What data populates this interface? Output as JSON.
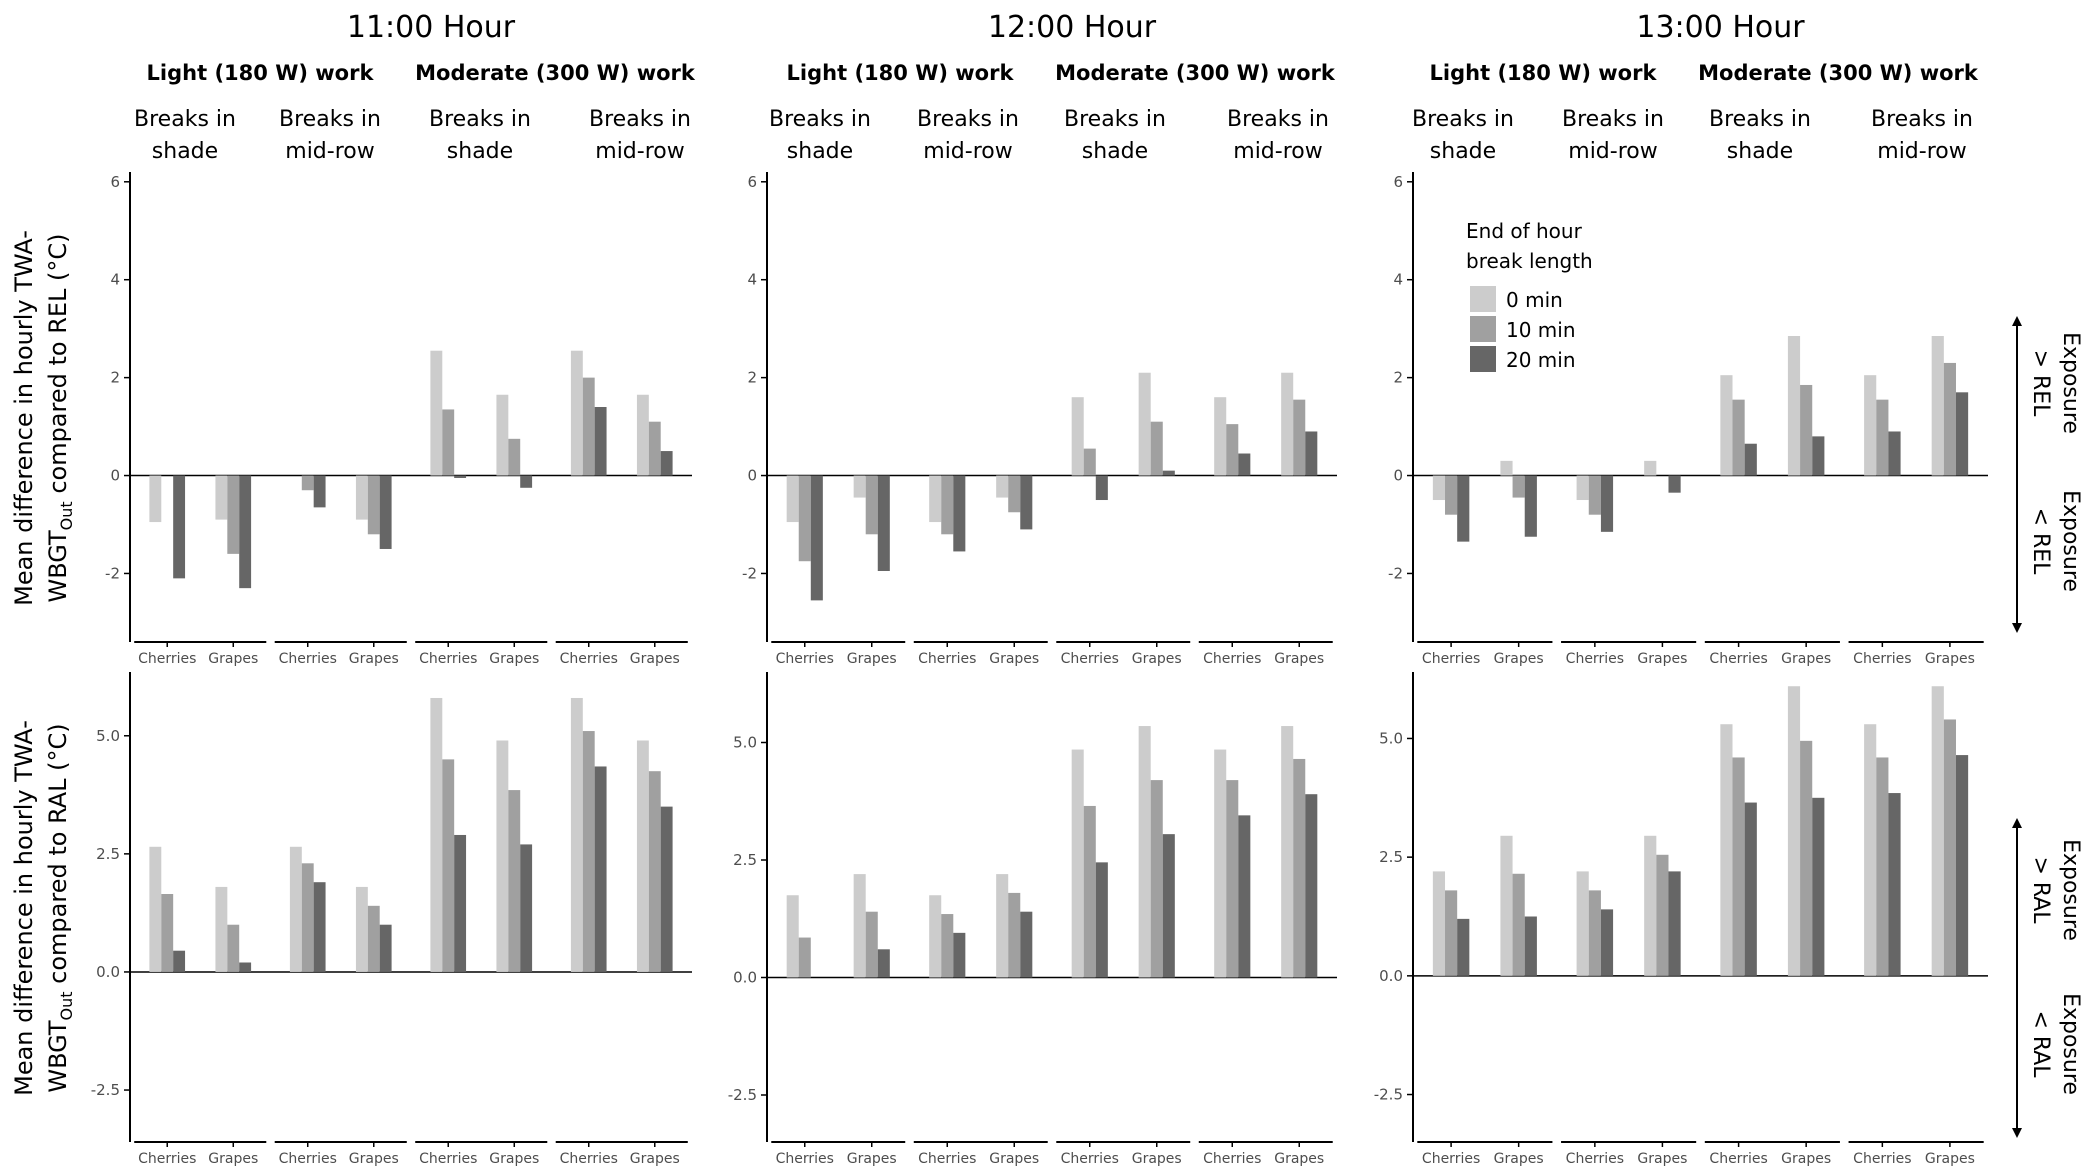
{
  "colors": {
    "break_0": "#cccccc",
    "break_10": "#a0a0a0",
    "break_20": "#666666",
    "axis": "#000000",
    "tick_text": "#4d4d4d",
    "background": "#ffffff"
  },
  "scenarios": [
    {
      "work": "Light (180 W) work",
      "break_location": "Breaks in shade"
    },
    {
      "work": "Light (180 W) work",
      "break_location": "Breaks in mid-row"
    },
    {
      "work": "Moderate (300 W) work",
      "break_location": "Breaks in shade"
    },
    {
      "work": "Moderate (300 W) work",
      "break_location": "Breaks in mid-row"
    }
  ],
  "scenario_header": {
    "work_labels": [
      "Light (180 W) work",
      "Moderate (300 W) work"
    ],
    "break_labels": [
      [
        "Breaks in",
        "shade"
      ],
      [
        "Breaks in",
        "mid-row"
      ],
      [
        "Breaks in",
        "shade"
      ],
      [
        "Breaks in",
        "mid-row"
      ]
    ]
  },
  "legend": {
    "title_lines": [
      "End of hour",
      "break length"
    ],
    "items": [
      "0 min",
      "10 min",
      "20 min"
    ]
  },
  "row_labels": {
    "rel": {
      "line1": "Mean difference in hourly TWA-",
      "line2_main": "WBGT",
      "line2_sub": "Out",
      "line2_rest": " compared to REL (°C)"
    },
    "ral": {
      "line1": "Mean difference in hourly TWA-",
      "line2_main": "WBGT",
      "line2_sub": "Out",
      "line2_rest": " compared to RAL (°C)"
    }
  },
  "side_labels": {
    "rel_above": [
      "Exposure",
      "> REL"
    ],
    "rel_below": [
      "Exposure",
      "< REL"
    ],
    "ral_above": [
      "Exposure",
      "> RAL"
    ],
    "ral_below": [
      "Exposure",
      "< RAL"
    ]
  },
  "chart_data": [
    {
      "type": "bar",
      "title": "11:00 Hour",
      "ylabel": "Mean difference in hourly TWA-WBGTOut compared to REL (°C)",
      "ylim": [
        -3.4,
        6.2
      ],
      "yticks": [
        -2,
        0,
        2,
        4,
        6
      ],
      "ytick_labels": [
        "-2",
        "0",
        "2",
        "4",
        "6"
      ],
      "categories": [
        "Cherries",
        "Grapes"
      ],
      "series": [
        {
          "name": "0 min",
          "values": [
            [
              -0.95,
              -0.9
            ],
            [
              0.0,
              -0.9
            ],
            [
              2.55,
              1.65
            ],
            [
              2.55,
              1.65
            ]
          ]
        },
        {
          "name": "10 min",
          "values": [
            [
              0.0,
              -1.6
            ],
            [
              -0.3,
              -1.2
            ],
            [
              1.35,
              0.75
            ],
            [
              2.0,
              1.1
            ]
          ]
        },
        {
          "name": "20 min",
          "values": [
            [
              -2.1,
              -2.3
            ],
            [
              -0.65,
              -1.5
            ],
            [
              -0.05,
              -0.25
            ],
            [
              1.4,
              0.5
            ]
          ]
        }
      ]
    },
    {
      "type": "bar",
      "title": "12:00 Hour",
      "ylabel": "Mean difference in hourly TWA-WBGTOut compared to REL (°C)",
      "ylim": [
        -3.4,
        6.2
      ],
      "yticks": [
        -2,
        0,
        2,
        4,
        6
      ],
      "ytick_labels": [
        "-2",
        "0",
        "2",
        "4",
        "6"
      ],
      "categories": [
        "Cherries",
        "Grapes"
      ],
      "series": [
        {
          "name": "0 min",
          "values": [
            [
              -0.95,
              -0.45
            ],
            [
              -0.95,
              -0.45
            ],
            [
              1.6,
              2.1
            ],
            [
              1.6,
              2.1
            ]
          ]
        },
        {
          "name": "10 min",
          "values": [
            [
              -1.75,
              -1.2
            ],
            [
              -1.2,
              -0.75
            ],
            [
              0.55,
              1.1
            ],
            [
              1.05,
              1.55
            ]
          ]
        },
        {
          "name": "20 min",
          "values": [
            [
              -2.55,
              -1.95
            ],
            [
              -1.55,
              -1.1
            ],
            [
              -0.5,
              0.1
            ],
            [
              0.45,
              0.9
            ]
          ]
        }
      ]
    },
    {
      "type": "bar",
      "title": "13:00 Hour",
      "ylabel": "Mean difference in hourly TWA-WBGTOut compared to REL (°C)",
      "ylim": [
        -3.4,
        6.2
      ],
      "yticks": [
        -2,
        0,
        2,
        4,
        6
      ],
      "ytick_labels": [
        "-2",
        "0",
        "2",
        "4",
        "6"
      ],
      "categories": [
        "Cherries",
        "Grapes"
      ],
      "series": [
        {
          "name": "0 min",
          "values": [
            [
              -0.5,
              0.3
            ],
            [
              -0.5,
              0.3
            ],
            [
              2.05,
              2.85
            ],
            [
              2.05,
              2.85
            ]
          ]
        },
        {
          "name": "10 min",
          "values": [
            [
              -0.8,
              -0.45
            ],
            [
              -0.8,
              0.0
            ],
            [
              1.55,
              1.85
            ],
            [
              1.55,
              2.3
            ]
          ]
        },
        {
          "name": "20 min",
          "values": [
            [
              -1.35,
              -1.25
            ],
            [
              -1.15,
              -0.35
            ],
            [
              0.65,
              0.8
            ],
            [
              0.9,
              1.7
            ]
          ]
        }
      ]
    },
    {
      "type": "bar",
      "title": "11:00 Hour",
      "ylabel": "Mean difference in hourly TWA-WBGTOut compared to RAL (°C)",
      "ylim": [
        -3.6,
        6.35
      ],
      "yticks": [
        -2.5,
        0.0,
        2.5,
        5.0
      ],
      "ytick_labels": [
        "-2.5",
        "0.0",
        "2.5",
        "5.0"
      ],
      "categories": [
        "Cherries",
        "Grapes"
      ],
      "series": [
        {
          "name": "0 min",
          "values": [
            [
              2.65,
              1.8
            ],
            [
              2.65,
              1.8
            ],
            [
              5.8,
              4.9
            ],
            [
              5.8,
              4.9
            ]
          ]
        },
        {
          "name": "10 min",
          "values": [
            [
              1.65,
              1.0
            ],
            [
              2.3,
              1.4
            ],
            [
              4.5,
              3.85
            ],
            [
              5.1,
              4.25
            ]
          ]
        },
        {
          "name": "20 min",
          "values": [
            [
              0.45,
              0.2
            ],
            [
              1.9,
              1.0
            ],
            [
              2.9,
              2.7
            ],
            [
              4.35,
              3.5
            ]
          ]
        }
      ]
    },
    {
      "type": "bar",
      "title": "12:00 Hour",
      "ylabel": "Mean difference in hourly TWA-WBGTOut compared to RAL (°C)",
      "ylim": [
        -3.5,
        6.5
      ],
      "yticks": [
        -2.5,
        0.0,
        2.5,
        5.0
      ],
      "ytick_labels": [
        "-2.5",
        "0.0",
        "2.5",
        "5.0"
      ],
      "categories": [
        "Cherries",
        "Grapes"
      ],
      "series": [
        {
          "name": "0 min",
          "values": [
            [
              1.75,
              2.2
            ],
            [
              1.75,
              2.2
            ],
            [
              4.85,
              5.35
            ],
            [
              4.85,
              5.35
            ]
          ]
        },
        {
          "name": "10 min",
          "values": [
            [
              0.85,
              1.4
            ],
            [
              1.35,
              1.8
            ],
            [
              3.65,
              4.2
            ],
            [
              4.2,
              4.65
            ]
          ]
        },
        {
          "name": "20 min",
          "values": [
            [
              0.0,
              0.6
            ],
            [
              0.95,
              1.4
            ],
            [
              2.45,
              3.05
            ],
            [
              3.45,
              3.9
            ]
          ]
        }
      ]
    },
    {
      "type": "bar",
      "title": "13:00 Hour",
      "ylabel": "Mean difference in hourly TWA-WBGTOut compared to RAL (°C)",
      "ylim": [
        -3.5,
        6.4
      ],
      "yticks": [
        -2.5,
        0.0,
        2.5,
        5.0
      ],
      "ytick_labels": [
        "-2.5",
        "0.0",
        "2.5",
        "5.0"
      ],
      "categories": [
        "Cherries",
        "Grapes"
      ],
      "series": [
        {
          "name": "0 min",
          "values": [
            [
              2.2,
              2.95
            ],
            [
              2.2,
              2.95
            ],
            [
              5.3,
              6.1
            ],
            [
              5.3,
              6.1
            ]
          ]
        },
        {
          "name": "10 min",
          "values": [
            [
              1.8,
              2.15
            ],
            [
              1.8,
              2.55
            ],
            [
              4.6,
              4.95
            ],
            [
              4.6,
              5.4
            ]
          ]
        },
        {
          "name": "20 min",
          "values": [
            [
              1.2,
              1.25
            ],
            [
              1.4,
              2.2
            ],
            [
              3.65,
              3.75
            ],
            [
              3.85,
              4.65
            ]
          ]
        }
      ]
    }
  ]
}
